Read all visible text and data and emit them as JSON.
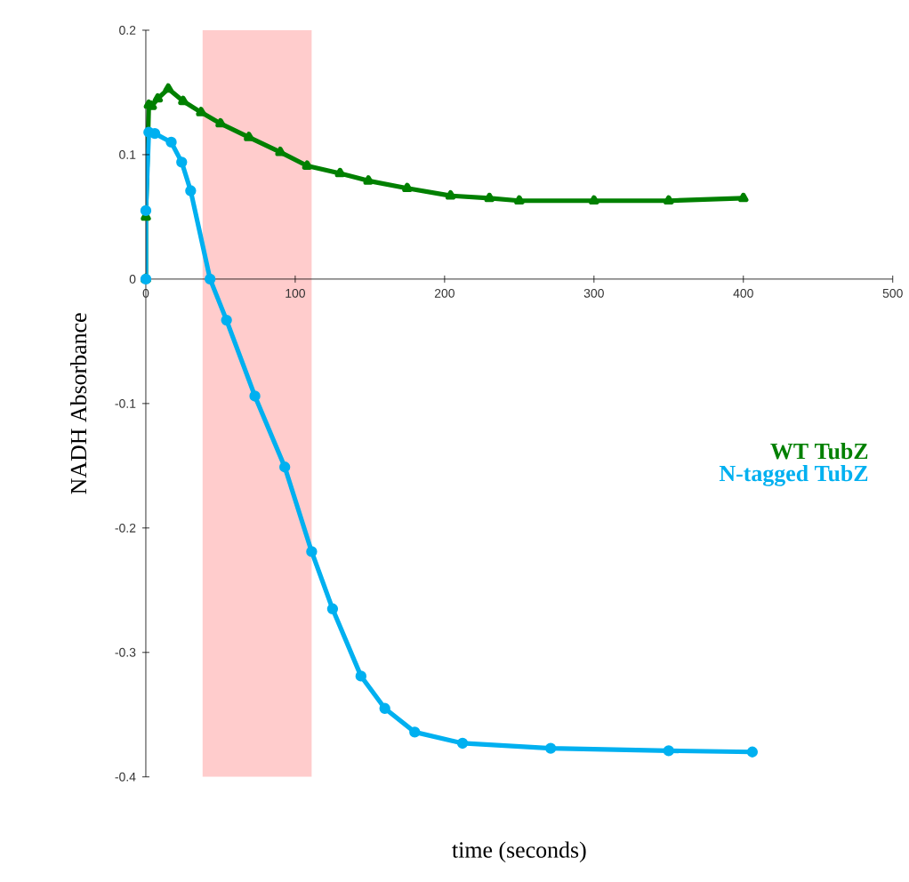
{
  "chart_data": {
    "type": "line",
    "xlabel": "time (seconds)",
    "ylabel": "NADH Absorbance",
    "xlim": [
      0,
      500
    ],
    "ylim": [
      -0.4,
      0.2
    ],
    "xticks": [
      0,
      100,
      200,
      300,
      400,
      500
    ],
    "yticks": [
      -0.4,
      -0.3,
      -0.2,
      -0.1,
      0,
      0.1,
      0.2
    ],
    "legend": "right",
    "grid": false,
    "bands": [
      {
        "axis": "x",
        "from": 38,
        "to": 111,
        "color": "#ffcccc"
      }
    ],
    "series": [
      {
        "name": "WT TubZ",
        "color": "#008000",
        "marker": "triangle",
        "x": [
          0,
          0,
          2,
          4,
          8,
          15,
          25,
          37,
          50,
          69,
          90,
          108,
          130,
          149,
          175,
          204,
          230,
          250,
          300,
          350,
          400
        ],
        "values": [
          0,
          0.05,
          0.14,
          0.139,
          0.145,
          0.153,
          0.143,
          0.134,
          0.125,
          0.114,
          0.102,
          0.091,
          0.085,
          0.079,
          0.073,
          0.067,
          0.065,
          0.063,
          0.063,
          0.063,
          0.065
        ]
      },
      {
        "name": "N-tagged TubZ",
        "color": "#00b0f0",
        "marker": "circle",
        "x": [
          0,
          0,
          2,
          6,
          17,
          24,
          30,
          43,
          54,
          73,
          93,
          111,
          125,
          144,
          160,
          180,
          212,
          271,
          350,
          406
        ],
        "values": [
          0,
          0.055,
          0.118,
          0.117,
          0.11,
          0.094,
          0.071,
          0,
          -0.033,
          -0.094,
          -0.151,
          -0.219,
          -0.265,
          -0.319,
          -0.345,
          -0.364,
          -0.373,
          -0.377,
          -0.379,
          -0.38
        ]
      }
    ]
  }
}
